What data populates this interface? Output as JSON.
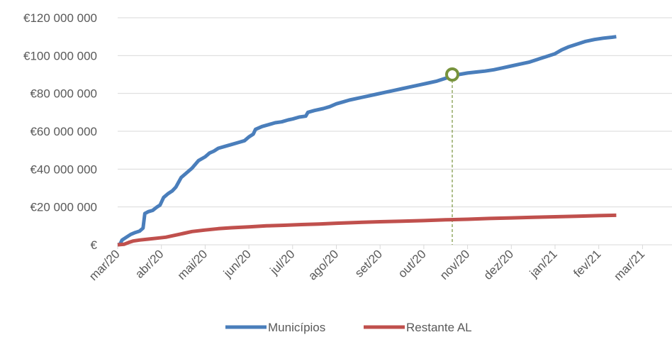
{
  "chart_data": {
    "type": "line",
    "title": "",
    "xlabel": "",
    "ylabel": "",
    "ylim": [
      0,
      120000000
    ],
    "y_ticks": [
      {
        "value": 0,
        "label": "€"
      },
      {
        "value": 20000000,
        "label": "€20 000 000"
      },
      {
        "value": 40000000,
        "label": "€40 000 000"
      },
      {
        "value": 60000000,
        "label": "€60 000 000"
      },
      {
        "value": 80000000,
        "label": "€80 000 000"
      },
      {
        "value": 100000000,
        "label": "€100 000 000"
      },
      {
        "value": 120000000,
        "label": "€120 000 000"
      }
    ],
    "x_ticks": [
      "mar/20",
      "abr/20",
      "mai/20",
      "jun/20",
      "jul/20",
      "ago/20",
      "set/20",
      "out/20",
      "nov/20",
      "dez/20",
      "jan/21",
      "fev/21",
      "mar/21"
    ],
    "grid": "horizontal",
    "legend_position": "bottom",
    "series": [
      {
        "name": "Municípios",
        "color": "#4A7EBB",
        "points": [
          [
            0,
            0
          ],
          [
            0.05,
            200000
          ],
          [
            0.1,
            2500000
          ],
          [
            0.2,
            4000000
          ],
          [
            0.3,
            5500000
          ],
          [
            0.4,
            6500000
          ],
          [
            0.5,
            7200000
          ],
          [
            0.58,
            8800000
          ],
          [
            0.62,
            16500000
          ],
          [
            0.7,
            17500000
          ],
          [
            0.8,
            18200000
          ],
          [
            0.9,
            20000000
          ],
          [
            0.97,
            21000000
          ],
          [
            1.05,
            25000000
          ],
          [
            1.15,
            27000000
          ],
          [
            1.25,
            28500000
          ],
          [
            1.33,
            30500000
          ],
          [
            1.45,
            35500000
          ],
          [
            1.55,
            37500000
          ],
          [
            1.7,
            40500000
          ],
          [
            1.85,
            44500000
          ],
          [
            2.0,
            46500000
          ],
          [
            2.1,
            48500000
          ],
          [
            2.2,
            49500000
          ],
          [
            2.3,
            51000000
          ],
          [
            2.45,
            52000000
          ],
          [
            2.6,
            53000000
          ],
          [
            2.75,
            54000000
          ],
          [
            2.9,
            55000000
          ],
          [
            3.0,
            57000000
          ],
          [
            3.1,
            58500000
          ],
          [
            3.15,
            61000000
          ],
          [
            3.3,
            62500000
          ],
          [
            3.45,
            63500000
          ],
          [
            3.6,
            64500000
          ],
          [
            3.75,
            65000000
          ],
          [
            3.9,
            66000000
          ],
          [
            4.0,
            66500000
          ],
          [
            4.15,
            67500000
          ],
          [
            4.3,
            68000000
          ],
          [
            4.35,
            70000000
          ],
          [
            4.5,
            71000000
          ],
          [
            4.7,
            72000000
          ],
          [
            4.85,
            73000000
          ],
          [
            5.0,
            74500000
          ],
          [
            5.15,
            75500000
          ],
          [
            5.3,
            76500000
          ],
          [
            5.5,
            77500000
          ],
          [
            5.7,
            78500000
          ],
          [
            5.9,
            79500000
          ],
          [
            6.1,
            80500000
          ],
          [
            6.3,
            81500000
          ],
          [
            6.5,
            82500000
          ],
          [
            6.7,
            83500000
          ],
          [
            6.9,
            84500000
          ],
          [
            7.1,
            85500000
          ],
          [
            7.3,
            86500000
          ],
          [
            7.5,
            88000000
          ],
          [
            7.6,
            89000000
          ],
          [
            7.8,
            90000000
          ],
          [
            8.0,
            90800000
          ],
          [
            8.2,
            91300000
          ],
          [
            8.4,
            91800000
          ],
          [
            8.6,
            92500000
          ],
          [
            8.8,
            93500000
          ],
          [
            9.0,
            94500000
          ],
          [
            9.2,
            95500000
          ],
          [
            9.4,
            96500000
          ],
          [
            9.6,
            98000000
          ],
          [
            9.8,
            99500000
          ],
          [
            10.0,
            101000000
          ],
          [
            10.15,
            103000000
          ],
          [
            10.3,
            104500000
          ],
          [
            10.5,
            106000000
          ],
          [
            10.7,
            107500000
          ],
          [
            10.9,
            108500000
          ],
          [
            11.1,
            109200000
          ],
          [
            11.3,
            109700000
          ],
          [
            11.4,
            110000000
          ]
        ]
      },
      {
        "name": "Restante AL",
        "color": "#C0504D",
        "points": [
          [
            0,
            0
          ],
          [
            0.15,
            300000
          ],
          [
            0.25,
            1200000
          ],
          [
            0.35,
            2000000
          ],
          [
            0.5,
            2500000
          ],
          [
            0.7,
            3000000
          ],
          [
            0.9,
            3500000
          ],
          [
            1.1,
            4000000
          ],
          [
            1.3,
            5000000
          ],
          [
            1.5,
            6000000
          ],
          [
            1.7,
            7000000
          ],
          [
            2.0,
            7800000
          ],
          [
            2.3,
            8500000
          ],
          [
            2.6,
            9000000
          ],
          [
            3.0,
            9500000
          ],
          [
            3.4,
            10000000
          ],
          [
            3.8,
            10300000
          ],
          [
            4.2,
            10700000
          ],
          [
            4.6,
            11000000
          ],
          [
            5.0,
            11400000
          ],
          [
            5.5,
            11800000
          ],
          [
            6.0,
            12200000
          ],
          [
            6.5,
            12500000
          ],
          [
            7.0,
            12800000
          ],
          [
            7.5,
            13200000
          ],
          [
            8.0,
            13500000
          ],
          [
            8.5,
            13900000
          ],
          [
            9.0,
            14200000
          ],
          [
            9.5,
            14500000
          ],
          [
            10.0,
            14800000
          ],
          [
            10.5,
            15100000
          ],
          [
            11.0,
            15400000
          ],
          [
            11.4,
            15600000
          ]
        ]
      }
    ],
    "highlight": {
      "x": 7.65,
      "y": 90000000,
      "marker_color": "#77933C",
      "dropline_color": "#77933C",
      "dropline_style": "dashed"
    },
    "colors": {
      "grid": "#D9D9D9",
      "axis": "#D9D9D9",
      "text": "#595959"
    }
  }
}
